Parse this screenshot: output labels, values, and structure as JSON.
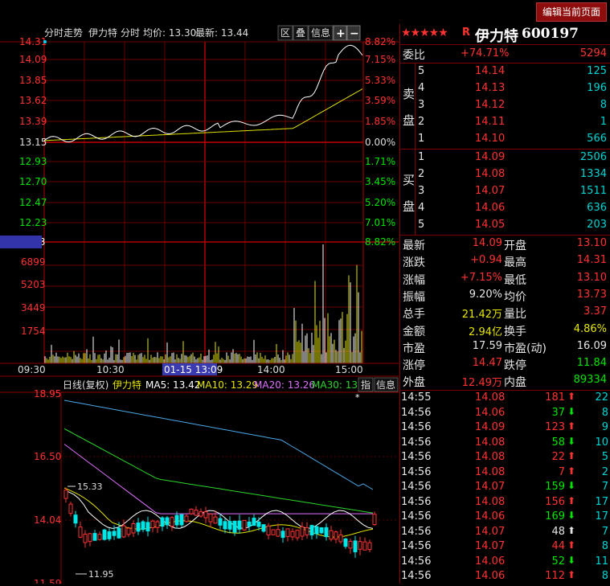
{
  "topbar": {
    "edit_label": "编辑当前页面"
  },
  "intraday": {
    "title": "分时走势",
    "stock": "伊力特",
    "mode": "分时",
    "avg_label": "均价: 13.30",
    "last_label": "最新: 13.44",
    "buttons": [
      "区",
      "叠",
      "信息",
      "+",
      "−"
    ],
    "price_ticks": [
      "14.31",
      "14.09",
      "13.85",
      "13.62",
      "13.39",
      "13.15",
      "12.93",
      "12.70",
      "12.47",
      "12.23"
    ],
    "pct_ticks": [
      "8.82%",
      "7.15%",
      "5.33%",
      "3.59%",
      "1.85%",
      "0.00%",
      "1.71%",
      "3.45%",
      "5.20%",
      "7.01%"
    ],
    "vol_ticks": [
      "8243",
      "6899",
      "5203",
      "3449",
      "1754"
    ],
    "vol_pct_top": "8.82%",
    "time_ticks": [
      "09:30",
      "10:30",
      "14:00",
      "15:00"
    ],
    "cursor_time": "01-15 13:09"
  },
  "kline": {
    "title": "日线(复权)",
    "stock": "伊力特",
    "ma5": "MA5: 13.42",
    "ma10": "MA10: 13.29",
    "ma20": "MA20: 13.26",
    "ma30": "MA30: 13.5",
    "btn_zhi": "指",
    "btn_info": "信息",
    "price_ticks": [
      "18.95",
      "16.50",
      "14.04",
      "11.59"
    ],
    "high_mark": "15.33",
    "low_mark": "11.95",
    "star": "*"
  },
  "header": {
    "stars": "★★★★★",
    "r": "R",
    "name": "伊力特",
    "code": "600197"
  },
  "weibi": {
    "label": "委比",
    "pct": "+74.71%",
    "value": "5294"
  },
  "sell_label": [
    "卖",
    "盘"
  ],
  "buy_label": [
    "买",
    "盘"
  ],
  "sell": [
    {
      "lvl": "5",
      "price": "14.14",
      "vol": "125"
    },
    {
      "lvl": "4",
      "price": "14.13",
      "vol": "196"
    },
    {
      "lvl": "3",
      "price": "14.12",
      "vol": "8"
    },
    {
      "lvl": "2",
      "price": "14.11",
      "vol": "1"
    },
    {
      "lvl": "1",
      "price": "14.10",
      "vol": "566"
    }
  ],
  "buy": [
    {
      "lvl": "1",
      "price": "14.09",
      "vol": "2506"
    },
    {
      "lvl": "2",
      "price": "14.08",
      "vol": "1334"
    },
    {
      "lvl": "3",
      "price": "14.07",
      "vol": "1511"
    },
    {
      "lvl": "4",
      "price": "14.06",
      "vol": "636"
    },
    {
      "lvl": "5",
      "price": "14.05",
      "vol": "203"
    }
  ],
  "stats": [
    {
      "l1": "最新",
      "v1": "14.09",
      "c1": "red",
      "l2": "开盘",
      "v2": "13.10",
      "c2": "red"
    },
    {
      "l1": "涨跌",
      "v1": "+0.94",
      "c1": "red",
      "l2": "最高",
      "v2": "14.31",
      "c2": "red"
    },
    {
      "l1": "涨幅",
      "v1": "+7.15%",
      "c1": "red",
      "l2": "最低",
      "v2": "13.10",
      "c2": "red"
    },
    {
      "l1": "振幅",
      "v1": "9.20%",
      "c1": "wht",
      "l2": "均价",
      "v2": "13.73",
      "c2": "red"
    },
    {
      "l1": "总手",
      "v1": "21.42万",
      "c1": "yel",
      "l2": "量比",
      "v2": "3.37",
      "c2": "red"
    },
    {
      "l1": "金额",
      "v1": "2.94亿",
      "c1": "yel",
      "l2": "换手",
      "v2": "4.86%",
      "c2": "yel"
    },
    {
      "l1": "市盈",
      "v1": "17.59",
      "c1": "wht",
      "l2": "市盈(动)",
      "v2": "16.09",
      "c2": "wht"
    },
    {
      "l1": "涨停",
      "v1": "14.47",
      "c1": "red",
      "l2": "跌停",
      "v2": "11.84",
      "c2": "grn"
    },
    {
      "l1": "外盘",
      "v1": "12.49万",
      "c1": "red",
      "l2": "内盘",
      "v2": "89334",
      "c2": "grn"
    }
  ],
  "ticks": [
    {
      "time": "14:55",
      "price": "14.08",
      "vol": "181",
      "dir": "up",
      "num": "22"
    },
    {
      "time": "14:56",
      "price": "14.06",
      "vol": "37",
      "dir": "down",
      "num": "8"
    },
    {
      "time": "14:56",
      "price": "14.09",
      "vol": "123",
      "dir": "up",
      "num": "9"
    },
    {
      "time": "14:56",
      "price": "14.08",
      "vol": "58",
      "dir": "down",
      "num": "10"
    },
    {
      "time": "14:56",
      "price": "14.08",
      "vol": "22",
      "dir": "up",
      "num": "5"
    },
    {
      "time": "14:56",
      "price": "14.08",
      "vol": "7",
      "dir": "up",
      "num": "2"
    },
    {
      "time": "14:56",
      "price": "14.07",
      "vol": "159",
      "dir": "down",
      "num": "7"
    },
    {
      "time": "14:56",
      "price": "14.08",
      "vol": "156",
      "dir": "up",
      "num": "17"
    },
    {
      "time": "14:56",
      "price": "14.06",
      "vol": "169",
      "dir": "down",
      "num": "17"
    },
    {
      "time": "14:56",
      "price": "14.07",
      "vol": "48",
      "dir": "neutral",
      "num": "7"
    },
    {
      "time": "14:56",
      "price": "14.07",
      "vol": "44",
      "dir": "up",
      "num": "8"
    },
    {
      "time": "14:56",
      "price": "14.06",
      "vol": "52",
      "dir": "down",
      "num": "11"
    },
    {
      "time": "14:56",
      "price": "14.06",
      "vol": "112",
      "dir": "up",
      "num": "8"
    }
  ],
  "colors": {
    "up": "#ff3232",
    "down": "#00e600",
    "grid": "#8b0000",
    "accent": "#8e0d0d"
  }
}
